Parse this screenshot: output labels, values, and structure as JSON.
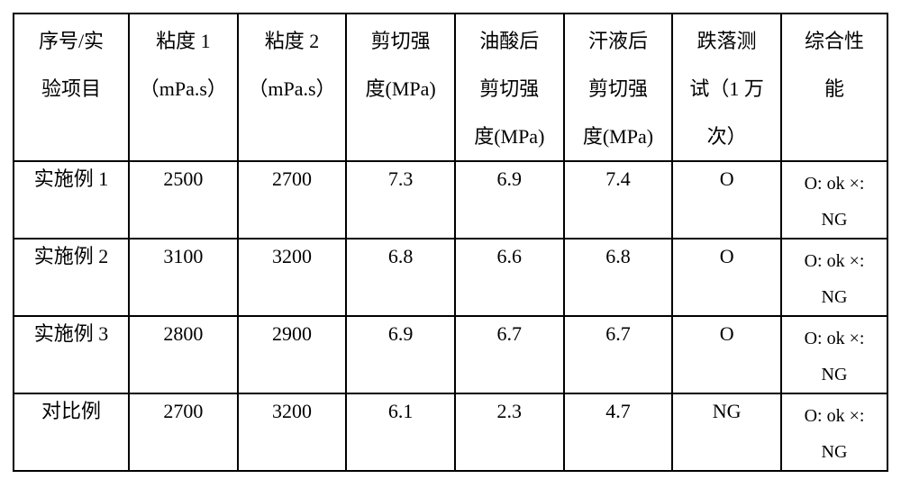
{
  "table": {
    "headers": [
      "序号/实\n验项目",
      "粘度 1\n（mPa.s）",
      "粘度 2\n（mPa.s）",
      "剪切强\n度(MPa)",
      "油酸后\n剪切强\n度(MPa)",
      "汗液后\n剪切强\n度(MPa)",
      "跌落测\n试（1 万\n次）",
      "综合性\n能"
    ],
    "rows": [
      {
        "label": "实施例 1",
        "v1": "2500",
        "v2": "2700",
        "v3": "7.3",
        "v4": "6.9",
        "v5": "7.4",
        "v6": "O",
        "v7": "O: ok ×:\nNG"
      },
      {
        "label": "实施例 2",
        "v1": "3100",
        "v2": "3200",
        "v3": "6.8",
        "v4": "6.6",
        "v5": "6.8",
        "v6": "O",
        "v7": "O: ok ×:\nNG"
      },
      {
        "label": "实施例 3",
        "v1": "2800",
        "v2": "2900",
        "v3": "6.9",
        "v4": "6.7",
        "v5": "6.7",
        "v6": "O",
        "v7": "O: ok ×:\nNG"
      },
      {
        "label": "对比例",
        "v1": "2700",
        "v2": "3200",
        "v3": "6.1",
        "v4": "2.3",
        "v5": "4.7",
        "v6": "NG",
        "v7": "O: ok ×:\nNG"
      }
    ]
  }
}
